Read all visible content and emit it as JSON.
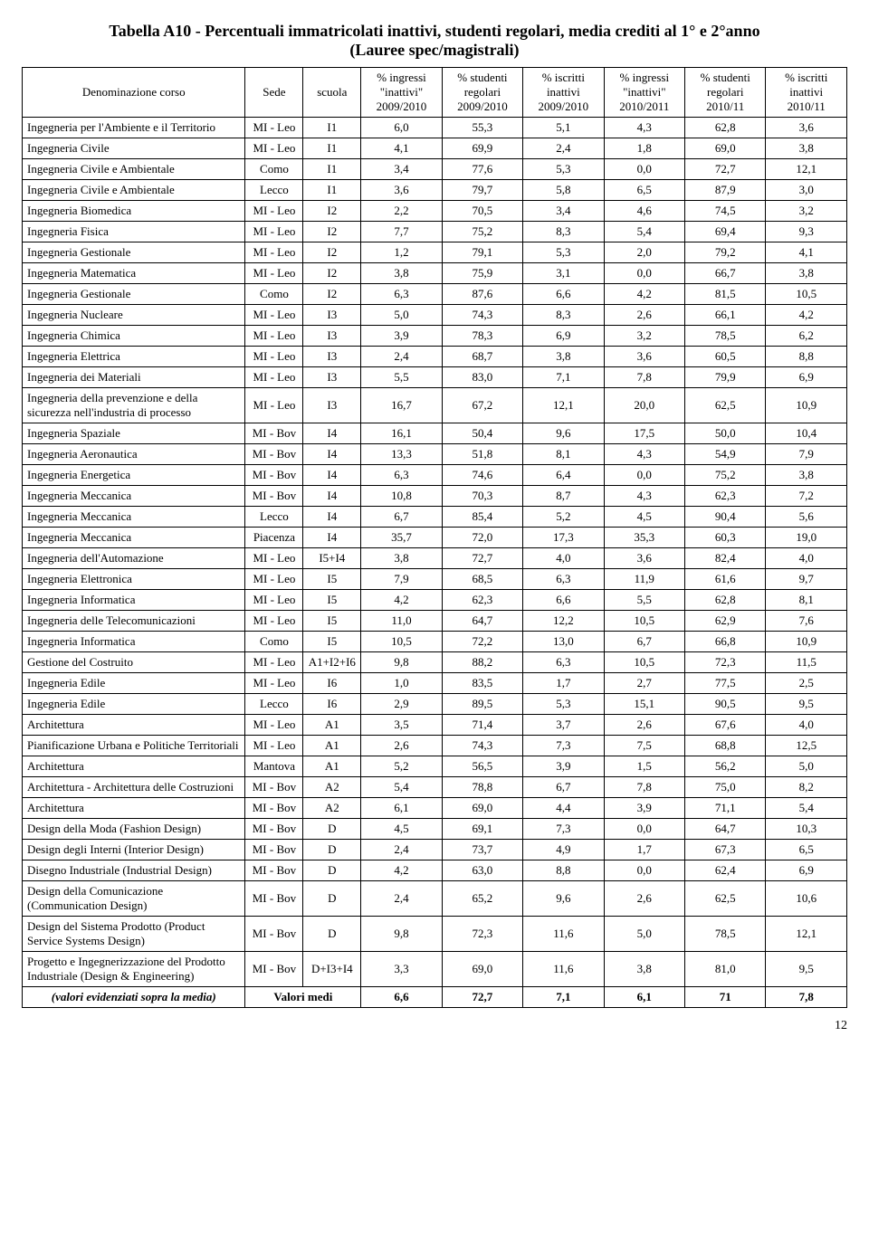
{
  "title_line1": "Tabella A10 - Percentuali immatricolati inattivi, studenti regolari, media crediti al 1° e 2°anno",
  "title_line2": "(Lauree spec/magistrali)",
  "headers": {
    "h0": "Denominazione corso",
    "h1": "Sede",
    "h2": "scuola",
    "h3": "% ingressi \"inattivi\" 2009/2010",
    "h4": "% studenti regolari 2009/2010",
    "h5": "% iscritti inattivi 2009/2010",
    "h6": "% ingressi \"inattivi\" 2010/2011",
    "h7": "% studenti regolari 2010/11",
    "h8": "% iscritti inattivi 2010/11"
  },
  "rows": [
    {
      "name": "Ingegneria per l'Ambiente e il Territorio",
      "sede": "MI - Leo",
      "scuola": "I1",
      "v1": "6,0",
      "v2": "55,3",
      "v3": "5,1",
      "v4": "4,3",
      "v5": "62,8",
      "v6": "3,6"
    },
    {
      "name": "Ingegneria Civile",
      "sede": "MI - Leo",
      "scuola": "I1",
      "v1": "4,1",
      "v2": "69,9",
      "v3": "2,4",
      "v4": "1,8",
      "v5": "69,0",
      "v6": "3,8"
    },
    {
      "name": "Ingegneria Civile e Ambientale",
      "sede": "Como",
      "scuola": "I1",
      "v1": "3,4",
      "v2": "77,6",
      "v3": "5,3",
      "v4": "0,0",
      "v5": "72,7",
      "v6": "12,1"
    },
    {
      "name": "Ingegneria Civile e Ambientale",
      "sede": "Lecco",
      "scuola": "I1",
      "v1": "3,6",
      "v2": "79,7",
      "v3": "5,8",
      "v4": "6,5",
      "v5": "87,9",
      "v6": "3,0"
    },
    {
      "name": "Ingegneria Biomedica",
      "sede": "MI - Leo",
      "scuola": "I2",
      "v1": "2,2",
      "v2": "70,5",
      "v3": "3,4",
      "v4": "4,6",
      "v5": "74,5",
      "v6": "3,2"
    },
    {
      "name": "Ingegneria Fisica",
      "sede": "MI - Leo",
      "scuola": "I2",
      "v1": "7,7",
      "v2": "75,2",
      "v3": "8,3",
      "v4": "5,4",
      "v5": "69,4",
      "v6": "9,3"
    },
    {
      "name": "Ingegneria Gestionale",
      "sede": "MI - Leo",
      "scuola": "I2",
      "v1": "1,2",
      "v2": "79,1",
      "v3": "5,3",
      "v4": "2,0",
      "v5": "79,2",
      "v6": "4,1"
    },
    {
      "name": "Ingegneria Matematica",
      "sede": "MI - Leo",
      "scuola": "I2",
      "v1": "3,8",
      "v2": "75,9",
      "v3": "3,1",
      "v4": "0,0",
      "v5": "66,7",
      "v6": "3,8"
    },
    {
      "name": "Ingegneria Gestionale",
      "sede": "Como",
      "scuola": "I2",
      "v1": "6,3",
      "v2": "87,6",
      "v3": "6,6",
      "v4": "4,2",
      "v5": "81,5",
      "v6": "10,5"
    },
    {
      "name": "Ingegneria Nucleare",
      "sede": "MI - Leo",
      "scuola": "I3",
      "v1": "5,0",
      "v2": "74,3",
      "v3": "8,3",
      "v4": "2,6",
      "v5": "66,1",
      "v6": "4,2"
    },
    {
      "name": "Ingegneria Chimica",
      "sede": "MI - Leo",
      "scuola": "I3",
      "v1": "3,9",
      "v2": "78,3",
      "v3": "6,9",
      "v4": "3,2",
      "v5": "78,5",
      "v6": "6,2"
    },
    {
      "name": "Ingegneria Elettrica",
      "sede": "MI - Leo",
      "scuola": "I3",
      "v1": "2,4",
      "v2": "68,7",
      "v3": "3,8",
      "v4": "3,6",
      "v5": "60,5",
      "v6": "8,8"
    },
    {
      "name": "Ingegneria dei Materiali",
      "sede": "MI - Leo",
      "scuola": "I3",
      "v1": "5,5",
      "v2": "83,0",
      "v3": "7,1",
      "v4": "7,8",
      "v5": "79,9",
      "v6": "6,9"
    },
    {
      "name": "Ingegneria della prevenzione e della sicurezza nell'industria di processo",
      "sede": "MI - Leo",
      "scuola": "I3",
      "v1": "16,7",
      "v2": "67,2",
      "v3": "12,1",
      "v4": "20,0",
      "v5": "62,5",
      "v6": "10,9"
    },
    {
      "name": "Ingegneria Spaziale",
      "sede": "MI - Bov",
      "scuola": "I4",
      "v1": "16,1",
      "v2": "50,4",
      "v3": "9,6",
      "v4": "17,5",
      "v5": "50,0",
      "v6": "10,4"
    },
    {
      "name": "Ingegneria Aeronautica",
      "sede": "MI - Bov",
      "scuola": "I4",
      "v1": "13,3",
      "v2": "51,8",
      "v3": "8,1",
      "v4": "4,3",
      "v5": "54,9",
      "v6": "7,9"
    },
    {
      "name": "Ingegneria Energetica",
      "sede": "MI - Bov",
      "scuola": "I4",
      "v1": "6,3",
      "v2": "74,6",
      "v3": "6,4",
      "v4": "0,0",
      "v5": "75,2",
      "v6": "3,8"
    },
    {
      "name": "Ingegneria Meccanica",
      "sede": "MI - Bov",
      "scuola": "I4",
      "v1": "10,8",
      "v2": "70,3",
      "v3": "8,7",
      "v4": "4,3",
      "v5": "62,3",
      "v6": "7,2"
    },
    {
      "name": "Ingegneria Meccanica",
      "sede": "Lecco",
      "scuola": "I4",
      "v1": "6,7",
      "v2": "85,4",
      "v3": "5,2",
      "v4": "4,5",
      "v5": "90,4",
      "v6": "5,6"
    },
    {
      "name": "Ingegneria Meccanica",
      "sede": "Piacenza",
      "scuola": "I4",
      "v1": "35,7",
      "v2": "72,0",
      "v3": "17,3",
      "v4": "35,3",
      "v5": "60,3",
      "v6": "19,0"
    },
    {
      "name": "Ingegneria dell'Automazione",
      "sede": "MI - Leo",
      "scuola": "I5+I4",
      "v1": "3,8",
      "v2": "72,7",
      "v3": "4,0",
      "v4": "3,6",
      "v5": "82,4",
      "v6": "4,0"
    },
    {
      "name": "Ingegneria Elettronica",
      "sede": "MI - Leo",
      "scuola": "I5",
      "v1": "7,9",
      "v2": "68,5",
      "v3": "6,3",
      "v4": "11,9",
      "v5": "61,6",
      "v6": "9,7"
    },
    {
      "name": "Ingegneria Informatica",
      "sede": "MI - Leo",
      "scuola": "I5",
      "v1": "4,2",
      "v2": "62,3",
      "v3": "6,6",
      "v4": "5,5",
      "v5": "62,8",
      "v6": "8,1"
    },
    {
      "name": "Ingegneria delle Telecomunicazioni",
      "sede": "MI - Leo",
      "scuola": "I5",
      "v1": "11,0",
      "v2": "64,7",
      "v3": "12,2",
      "v4": "10,5",
      "v5": "62,9",
      "v6": "7,6"
    },
    {
      "name": "Ingegneria Informatica",
      "sede": "Como",
      "scuola": "I5",
      "v1": "10,5",
      "v2": "72,2",
      "v3": "13,0",
      "v4": "6,7",
      "v5": "66,8",
      "v6": "10,9"
    },
    {
      "name": "Gestione del Costruito",
      "sede": "MI - Leo",
      "scuola": "A1+I2+I6",
      "v1": "9,8",
      "v2": "88,2",
      "v3": "6,3",
      "v4": "10,5",
      "v5": "72,3",
      "v6": "11,5"
    },
    {
      "name": "Ingegneria Edile",
      "sede": "MI - Leo",
      "scuola": "I6",
      "v1": "1,0",
      "v2": "83,5",
      "v3": "1,7",
      "v4": "2,7",
      "v5": "77,5",
      "v6": "2,5"
    },
    {
      "name": "Ingegneria Edile",
      "sede": "Lecco",
      "scuola": "I6",
      "v1": "2,9",
      "v2": "89,5",
      "v3": "5,3",
      "v4": "15,1",
      "v5": "90,5",
      "v6": "9,5"
    },
    {
      "name": "Architettura",
      "sede": "MI - Leo",
      "scuola": "A1",
      "v1": "3,5",
      "v2": "71,4",
      "v3": "3,7",
      "v4": "2,6",
      "v5": "67,6",
      "v6": "4,0"
    },
    {
      "name": "Pianificazione Urbana e Politiche Territoriali",
      "sede": "MI - Leo",
      "scuola": "A1",
      "v1": "2,6",
      "v2": "74,3",
      "v3": "7,3",
      "v4": "7,5",
      "v5": "68,8",
      "v6": "12,5"
    },
    {
      "name": "Architettura",
      "sede": "Mantova",
      "scuola": "A1",
      "v1": "5,2",
      "v2": "56,5",
      "v3": "3,9",
      "v4": "1,5",
      "v5": "56,2",
      "v6": "5,0"
    },
    {
      "name": "Architettura - Architettura delle Costruzioni",
      "sede": "MI - Bov",
      "scuola": "A2",
      "v1": "5,4",
      "v2": "78,8",
      "v3": "6,7",
      "v4": "7,8",
      "v5": "75,0",
      "v6": "8,2"
    },
    {
      "name": "Architettura",
      "sede": "MI - Bov",
      "scuola": "A2",
      "v1": "6,1",
      "v2": "69,0",
      "v3": "4,4",
      "v4": "3,9",
      "v5": "71,1",
      "v6": "5,4"
    },
    {
      "name": "Design della Moda (Fashion Design)",
      "sede": "MI - Bov",
      "scuola": "D",
      "v1": "4,5",
      "v2": "69,1",
      "v3": "7,3",
      "v4": "0,0",
      "v5": "64,7",
      "v6": "10,3"
    },
    {
      "name": "Design degli Interni (Interior Design)",
      "sede": "MI - Bov",
      "scuola": "D",
      "v1": "2,4",
      "v2": "73,7",
      "v3": "4,9",
      "v4": "1,7",
      "v5": "67,3",
      "v6": "6,5"
    },
    {
      "name": "Disegno Industriale (Industrial Design)",
      "sede": "MI - Bov",
      "scuola": "D",
      "v1": "4,2",
      "v2": "63,0",
      "v3": "8,8",
      "v4": "0,0",
      "v5": "62,4",
      "v6": "6,9"
    },
    {
      "name": "Design della Comunicazione (Communication Design)",
      "sede": "MI - Bov",
      "scuola": "D",
      "v1": "2,4",
      "v2": "65,2",
      "v3": "9,6",
      "v4": "2,6",
      "v5": "62,5",
      "v6": "10,6"
    },
    {
      "name": "Design del Sistema Prodotto (Product Service Systems Design)",
      "sede": "MI - Bov",
      "scuola": "D",
      "v1": "9,8",
      "v2": "72,3",
      "v3": "11,6",
      "v4": "5,0",
      "v5": "78,5",
      "v6": "12,1"
    },
    {
      "name": "Progetto e Ingegnerizzazione del Prodotto Industriale (Design & Engineering)",
      "sede": "MI - Bov",
      "scuola": "D+I3+I4",
      "v1": "3,3",
      "v2": "69,0",
      "v3": "11,6",
      "v4": "3,8",
      "v5": "81,0",
      "v6": "9,5"
    }
  ],
  "footer": {
    "label": "(valori evidenziati sopra la media)",
    "medi_label": "Valori medi",
    "v1": "6,6",
    "v2": "72,7",
    "v3": "7,1",
    "v4": "6,1",
    "v5": "71",
    "v6": "7,8"
  },
  "page_number": "12"
}
